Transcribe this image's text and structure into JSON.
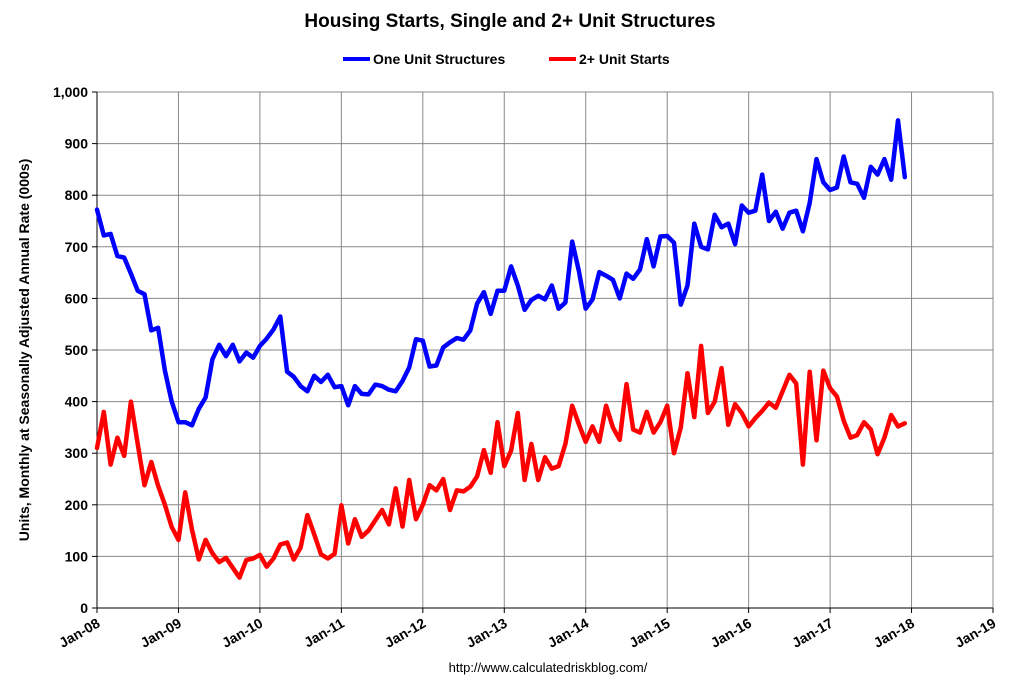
{
  "chart_data": {
    "type": "line",
    "title": "Housing Starts, Single and 2+ Unit Structures",
    "ylabel": "Units, Monthly at Seasonally Adjusted Annual Rate (000s)",
    "xlabel": "",
    "source": "http://www.calculatedriskblog.com/",
    "ylim": [
      0,
      1000
    ],
    "yticks": [
      0,
      100,
      200,
      300,
      400,
      500,
      600,
      700,
      800,
      900,
      1000
    ],
    "ytick_labels": [
      "0",
      "100",
      "200",
      "300",
      "400",
      "500",
      "600",
      "700",
      "800",
      "900",
      "1,000"
    ],
    "xlim": [
      "2008-01",
      "2019-01"
    ],
    "xticks": [
      "2008-01",
      "2009-01",
      "2010-01",
      "2011-01",
      "2012-01",
      "2013-01",
      "2014-01",
      "2015-01",
      "2016-01",
      "2017-01",
      "2018-01",
      "2019-01"
    ],
    "xtick_labels": [
      "Jan-08",
      "Jan-09",
      "Jan-10",
      "Jan-11",
      "Jan-12",
      "Jan-13",
      "Jan-14",
      "Jan-15",
      "Jan-16",
      "Jan-17",
      "Jan-18",
      "Jan-19"
    ],
    "grid": true,
    "legend_position": "top-center",
    "start_month": "2008-01",
    "series": [
      {
        "name": "One Unit Structures",
        "color": "#0000ff",
        "values": [
          772,
          722,
          725,
          682,
          679,
          648,
          615,
          608,
          538,
          543,
          460,
          400,
          360,
          360,
          354,
          386,
          408,
          482,
          510,
          488,
          510,
          478,
          495,
          485,
          508,
          522,
          540,
          565,
          458,
          448,
          430,
          420,
          450,
          438,
          452,
          428,
          430,
          393,
          430,
          415,
          414,
          433,
          430,
          423,
          420,
          440,
          466,
          521,
          518,
          468,
          470,
          505,
          515,
          523,
          520,
          538,
          590,
          612,
          570,
          615,
          615,
          662,
          625,
          578,
          597,
          605,
          598,
          625,
          580,
          592,
          710,
          653,
          580,
          598,
          651,
          644,
          636,
          600,
          648,
          638,
          656,
          715,
          662,
          720,
          721,
          708,
          588,
          625,
          745,
          700,
          695,
          762,
          738,
          745,
          705,
          780,
          766,
          770,
          840,
          750,
          768,
          735,
          766,
          770,
          730,
          785,
          870,
          825,
          810,
          815,
          875,
          825,
          822,
          795,
          855,
          840,
          870,
          830,
          945,
          835
        ]
      },
      {
        "name": "2+ Unit Starts",
        "color": "#ff0000",
        "values": [
          310,
          380,
          278,
          330,
          295,
          400,
          318,
          238,
          283,
          237,
          200,
          157,
          132,
          224,
          152,
          94,
          132,
          106,
          89,
          97,
          78,
          59,
          93,
          96,
          103,
          80,
          96,
          123,
          127,
          94,
          117,
          180,
          143,
          104,
          96,
          105,
          199,
          125,
          172,
          138,
          150,
          170,
          190,
          162,
          232,
          158,
          248,
          172,
          200,
          238,
          228,
          250,
          190,
          228,
          226,
          235,
          255,
          306,
          262,
          360,
          275,
          305,
          378,
          248,
          318,
          248,
          292,
          270,
          275,
          318,
          392,
          356,
          322,
          352,
          322,
          392,
          350,
          326,
          434,
          346,
          340,
          380,
          340,
          360,
          392,
          300,
          350,
          455,
          370,
          508,
          378,
          400,
          465,
          355,
          395,
          378,
          352,
          368,
          382,
          398,
          388,
          420,
          452,
          435,
          278,
          458,
          325,
          460,
          426,
          410,
          363,
          330,
          335,
          360,
          346,
          298,
          330,
          374,
          352,
          358
        ]
      }
    ]
  }
}
